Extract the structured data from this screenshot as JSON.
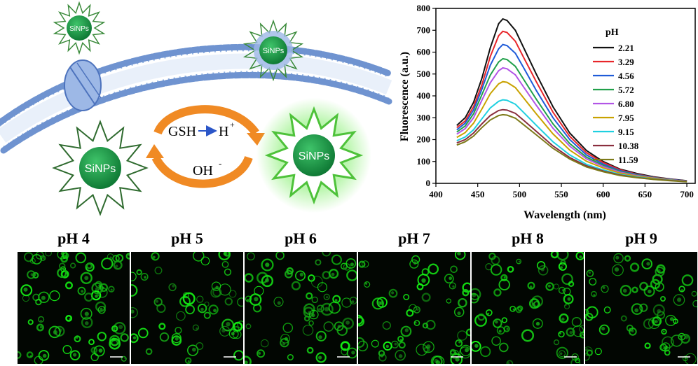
{
  "scheme": {
    "nanoparticle_label": "SiNPs",
    "cycle_top_left": "GSH",
    "cycle_top_right": "H",
    "cycle_top_right_sup": "+",
    "cycle_bottom": "OH",
    "cycle_bottom_sup": "-",
    "colors": {
      "particle": "#1f9a4a",
      "arrow": "#f08a24",
      "membrane": "#9bb4dd",
      "glow": "#7ee36a"
    }
  },
  "chart_data": {
    "type": "line",
    "title": "",
    "xlabel": "Wavelength (nm)",
    "ylabel": "Fluorescence (a.u.)",
    "xlim": [
      400,
      710
    ],
    "ylim": [
      0,
      800
    ],
    "xticks": [
      400,
      450,
      500,
      550,
      600,
      650,
      700
    ],
    "yticks": [
      0,
      100,
      200,
      300,
      400,
      500,
      600,
      700,
      800
    ],
    "legend_title": "pH",
    "legend_position": "right",
    "x": [
      425,
      435,
      445,
      455,
      465,
      475,
      480,
      485,
      495,
      505,
      520,
      540,
      560,
      580,
      600,
      620,
      640,
      660,
      680,
      700
    ],
    "series": [
      {
        "name": "2.21",
        "color": "#111111",
        "values": [
          265,
          300,
          370,
          480,
          620,
          730,
          752,
          745,
          700,
          620,
          500,
          350,
          230,
          150,
          100,
          65,
          45,
          30,
          20,
          12
        ]
      },
      {
        "name": "3.29",
        "color": "#e8262a",
        "values": [
          255,
          285,
          350,
          450,
          580,
          675,
          695,
          690,
          650,
          575,
          465,
          325,
          215,
          140,
          95,
          62,
          42,
          28,
          19,
          11
        ]
      },
      {
        "name": "4.56",
        "color": "#1f5bd8",
        "values": [
          245,
          275,
          335,
          430,
          540,
          615,
          635,
          630,
          595,
          528,
          425,
          300,
          200,
          130,
          88,
          58,
          40,
          27,
          18,
          11
        ]
      },
      {
        "name": "5.72",
        "color": "#21a04a",
        "values": [
          235,
          262,
          318,
          405,
          495,
          555,
          570,
          566,
          535,
          475,
          385,
          272,
          182,
          120,
          82,
          54,
          38,
          26,
          17,
          10
        ]
      },
      {
        "name": "6.80",
        "color": "#b255e6",
        "values": [
          225,
          250,
          300,
          380,
          460,
          515,
          528,
          524,
          496,
          440,
          357,
          252,
          170,
          112,
          77,
          51,
          36,
          25,
          16,
          10
        ]
      },
      {
        "name": "7.95",
        "color": "#c9a200",
        "values": [
          210,
          232,
          275,
          340,
          410,
          455,
          465,
          462,
          438,
          390,
          318,
          226,
          152,
          101,
          70,
          47,
          33,
          23,
          15,
          9
        ]
      },
      {
        "name": "9.15",
        "color": "#1fd0e0",
        "values": [
          195,
          212,
          245,
          295,
          345,
          375,
          382,
          380,
          362,
          324,
          266,
          190,
          130,
          87,
          61,
          41,
          29,
          20,
          14,
          8
        ]
      },
      {
        "name": "10.38",
        "color": "#8a2e3e",
        "values": [
          185,
          200,
          230,
          272,
          310,
          333,
          337,
          335,
          320,
          288,
          238,
          171,
          118,
          80,
          56,
          38,
          27,
          19,
          13,
          8
        ]
      },
      {
        "name": "11.59",
        "color": "#7d7a1a",
        "values": [
          175,
          190,
          216,
          255,
          290,
          310,
          314,
          312,
          298,
          268,
          222,
          160,
          111,
          75,
          53,
          36,
          26,
          18,
          12,
          7
        ]
      }
    ]
  },
  "panels": [
    {
      "label": "pH 4",
      "density": 1.0
    },
    {
      "label": "pH 5",
      "density": 0.75
    },
    {
      "label": "pH 6",
      "density": 0.85
    },
    {
      "label": "pH 7",
      "density": 0.8
    },
    {
      "label": "pH 8",
      "density": 0.85
    },
    {
      "label": "pH 9",
      "density": 0.8
    }
  ]
}
